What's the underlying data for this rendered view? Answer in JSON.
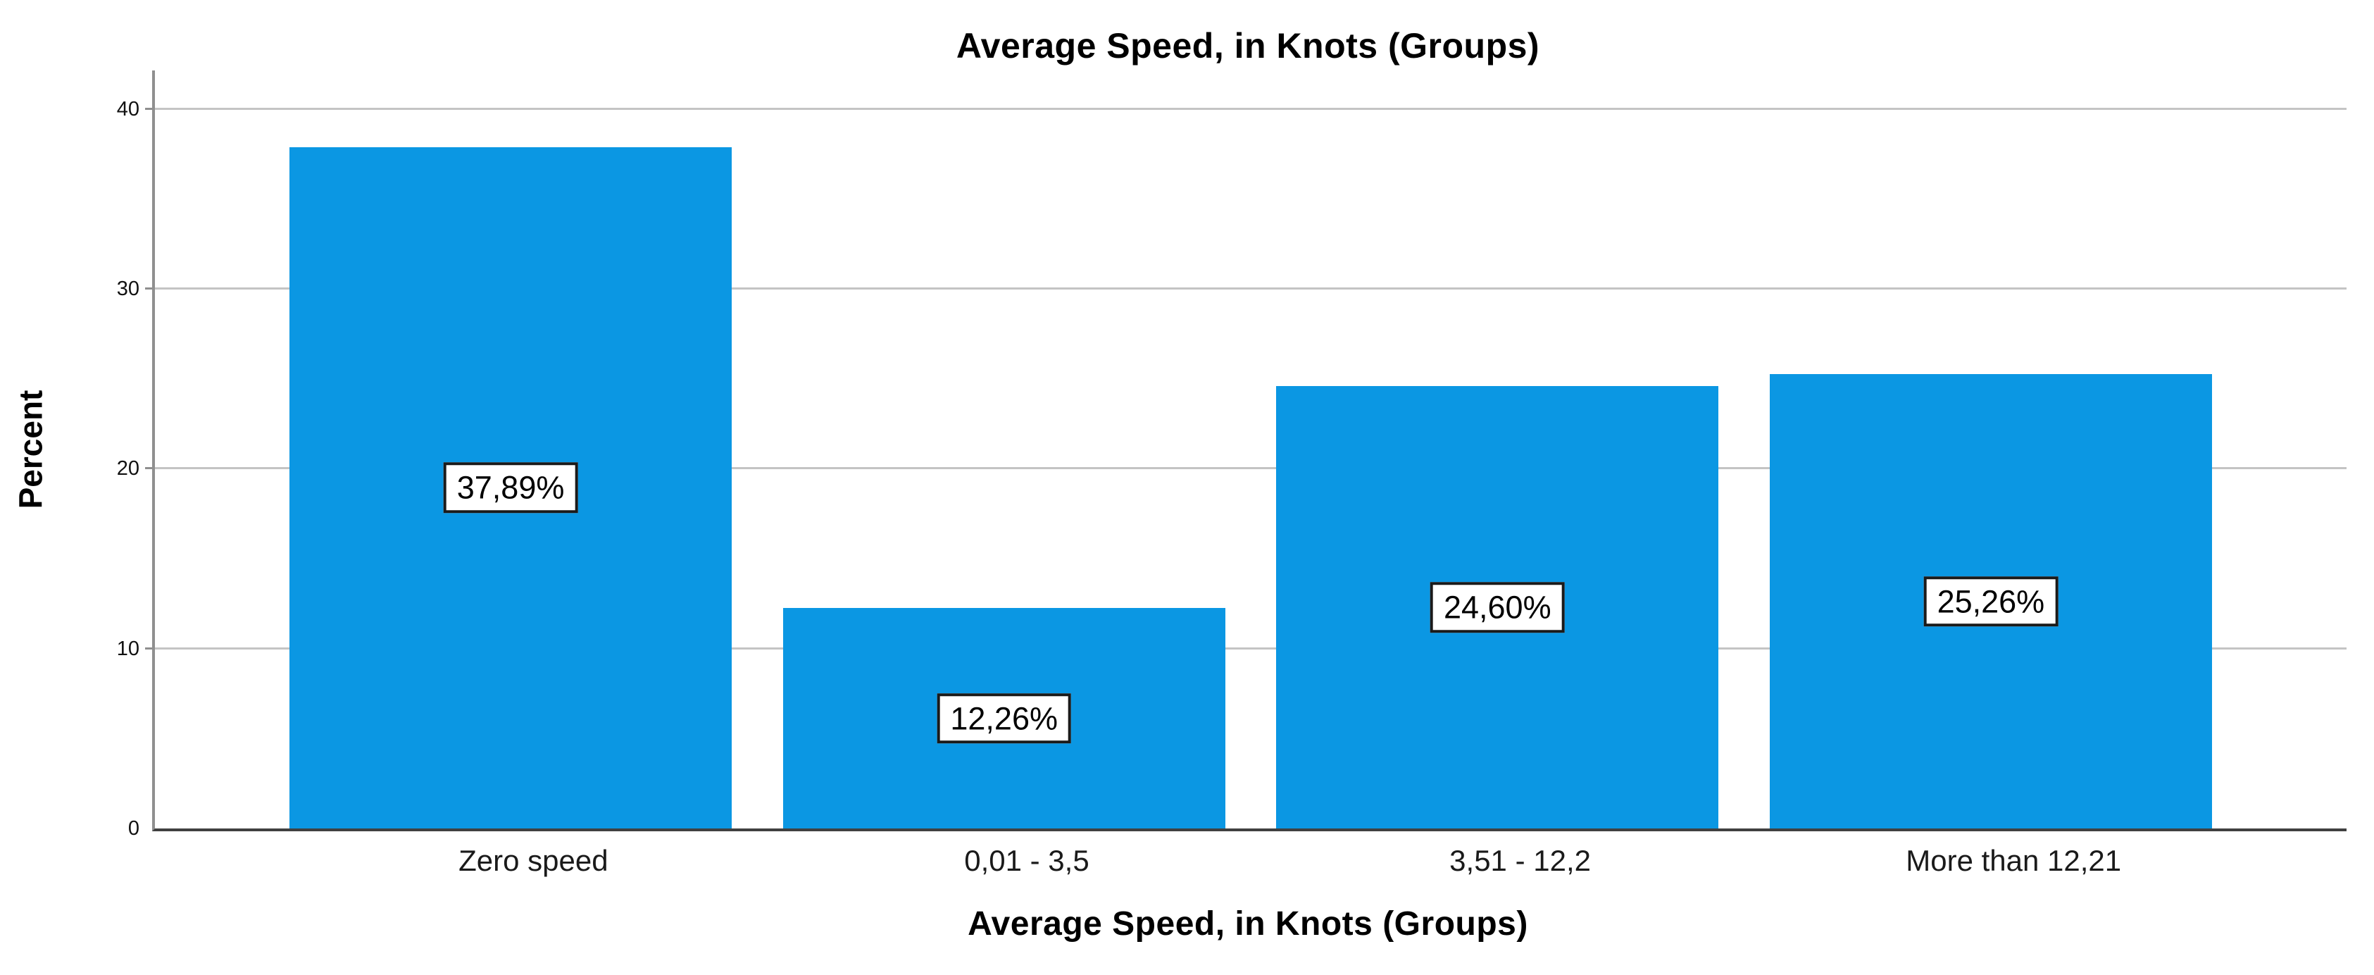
{
  "chart_data": {
    "type": "bar",
    "title": "Average Speed, in Knots (Groups)",
    "xlabel": "Average Speed, in Knots (Groups)",
    "ylabel": "Percent",
    "categories": [
      "Zero speed",
      "0,01 - 3,5",
      "3,51 - 12,2",
      "More than 12,21"
    ],
    "values": [
      37.89,
      12.26,
      24.6,
      25.26
    ],
    "bar_labels": [
      "37,89%",
      "12,26%",
      "24,60%",
      "25,26%"
    ],
    "y_ticks": [
      0,
      10,
      20,
      30,
      40
    ],
    "ylim": [
      0,
      42.15
    ],
    "grid": "horizontal",
    "legend": "none",
    "colors": {
      "bar_fill": "#0B97E3",
      "gridline": "#C4C4C4",
      "y_axis_line": "#8F8F8F",
      "x_axis_line": "#404040",
      "label_box_bg": "#FFFFFF",
      "label_box_border": "#1A1A1A",
      "text": "#000000"
    }
  }
}
